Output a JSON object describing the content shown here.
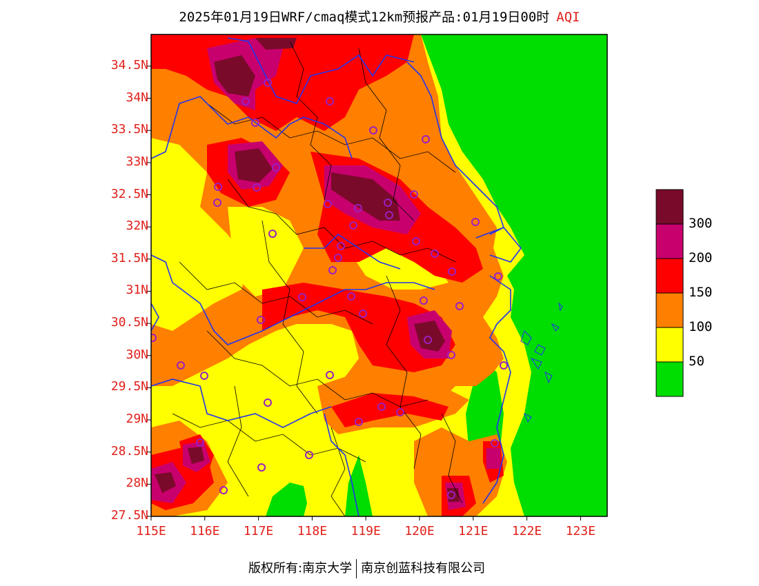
{
  "title": {
    "main": "2025年01月19日WRF/cmaq模式12km预报产品:01月19日00时",
    "variable": "AQI"
  },
  "axes": {
    "lat_labels": [
      "34.5N",
      "34N",
      "33.5N",
      "33N",
      "32.5N",
      "32N",
      "31.5N",
      "31N",
      "30.5N",
      "30N",
      "29.5N",
      "29N",
      "28.5N",
      "28N",
      "27.5N"
    ],
    "lon_labels": [
      "115E",
      "116E",
      "117E",
      "118E",
      "119E",
      "120E",
      "121E",
      "122E",
      "123E"
    ],
    "lat_range": [
      27.5,
      35.0
    ],
    "lon_range": [
      115.0,
      123.5
    ]
  },
  "legend": {
    "labels": [
      "300",
      "200",
      "150",
      "100",
      "50"
    ],
    "colors": [
      "#7a0a2a",
      "#c8006e",
      "#ff0000",
      "#ff7f00",
      "#ffff00",
      "#00dd00"
    ]
  },
  "palette": {
    "sea": "#00dd00",
    "boundary_province": "#2233ee",
    "boundary_county": "#000000",
    "station_marker": "#9a20c0"
  },
  "footer": {
    "left": "版权所有:南京大学",
    "right": "南京创蓝科技有限公司"
  }
}
